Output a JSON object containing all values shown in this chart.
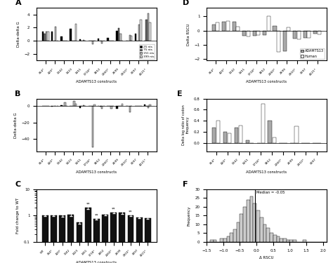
{
  "panel_A": {
    "categories": [
      "354*",
      "420*",
      "1342",
      "1423",
      "1451",
      "1718*",
      "1852",
      "2260*",
      "2699",
      "2910*",
      "3097",
      "4221*"
    ],
    "series": {
      "25nt": [
        1.4,
        1.4,
        0.65,
        1.8,
        0.2,
        0.0,
        0.35,
        0.4,
        1.55,
        0.0,
        1.1,
        0.0
      ],
      "75nt": [
        1.1,
        0.0,
        0.0,
        0.0,
        0.0,
        0.0,
        0.0,
        0.0,
        1.9,
        0.0,
        0.0,
        3.2
      ],
      "151nt": [
        1.4,
        2.2,
        0.0,
        0.0,
        0.15,
        -0.5,
        -0.4,
        0.0,
        1.05,
        0.85,
        2.5,
        4.15
      ],
      "399nt": [
        1.4,
        0.0,
        0.0,
        2.6,
        0.0,
        0.0,
        0.0,
        0.0,
        0.0,
        0.75,
        3.2,
        2.8
      ]
    },
    "ylabel": "Delta-delta G",
    "ylim": [
      -3,
      5
    ],
    "legend": [
      "25 nts",
      "75 nts",
      "151 nts",
      "399 nts"
    ],
    "colors": [
      "#000000",
      "#666666",
      "#bbbbbb",
      "#dddddd"
    ],
    "xlabel": "ADAMTS13 constructs"
  },
  "panel_B": {
    "categories": [
      "354*",
      "420*",
      "1342",
      "1423",
      "1451",
      "1718*",
      "1852",
      "2260*",
      "2699",
      "2910*",
      "3097",
      "4221*"
    ],
    "series": {
      "25nt": [
        0.0,
        -0.8,
        1.2,
        0.0,
        -2.2,
        0.0,
        0.0,
        0.0,
        -3.0,
        0.0,
        0.0,
        1.5
      ],
      "75nt": [
        0.0,
        0.0,
        0.0,
        0.0,
        0.0,
        0.0,
        -1.0,
        0.0,
        0.0,
        0.0,
        0.0,
        0.0
      ],
      "151nt": [
        0.0,
        0.0,
        4.5,
        5.7,
        1.0,
        -50.0,
        -3.0,
        -3.5,
        0.0,
        -7.5,
        0.2,
        -2.5
      ],
      "399nt": [
        0.0,
        0.0,
        0.0,
        2.8,
        0.0,
        1.5,
        0.0,
        0.0,
        2.3,
        0.0,
        0.0,
        1.5
      ]
    },
    "ylabel": "Delta-delta G",
    "ylim": [
      -55,
      9
    ],
    "colors": [
      "#000000",
      "#666666",
      "#bbbbbb",
      "#dddddd"
    ],
    "xlabel": "ADAMTS13 constructs"
  },
  "panel_C": {
    "categories": [
      "WT",
      "354*",
      "420*",
      "1342",
      "1423",
      "1451",
      "1718*",
      "1852",
      "2260*",
      "2699",
      "2910*",
      "3097",
      "4221*"
    ],
    "values": [
      1.0,
      1.0,
      1.0,
      1.1,
      0.55,
      2.0,
      0.75,
      1.1,
      1.35,
      1.3,
      1.05,
      0.85,
      0.82
    ],
    "errors": [
      0.06,
      0.06,
      0.07,
      0.12,
      0.06,
      0.25,
      0.05,
      0.1,
      0.15,
      0.14,
      0.1,
      0.07,
      0.07
    ],
    "sig": [
      false,
      false,
      false,
      false,
      false,
      true,
      true,
      false,
      true,
      false,
      true,
      false,
      false
    ],
    "ylabel": "Fold change to WT",
    "xlabel": "ADAMTS13 constructs",
    "ylim_log": [
      0.1,
      10
    ],
    "color": "#111111"
  },
  "panel_D": {
    "categories": [
      "354*",
      "420*",
      "1342",
      "1451",
      "1718*",
      "1852",
      "2260*",
      "2699",
      "2910*",
      "3097",
      "4221*"
    ],
    "adamts13": [
      0.45,
      0.65,
      0.65,
      -0.35,
      -0.35,
      -0.3,
      0.35,
      -1.45,
      -0.55,
      -0.5,
      -0.2
    ],
    "human": [
      0.6,
      0.7,
      0.3,
      -0.4,
      -0.3,
      1.0,
      -1.5,
      0.25,
      -0.6,
      -0.5,
      -0.25
    ],
    "ylabel": "Delta RSCU",
    "ylim": [
      -2.1,
      1.6
    ],
    "xlabel": "ADAMTS13 constructs",
    "colors": [
      "#aaaaaa",
      "#ffffff"
    ],
    "legend": [
      "ADAMTS13",
      "Human"
    ]
  },
  "panel_E": {
    "categories": [
      "354*",
      "420*",
      "1342",
      "1451",
      "1718*",
      "1852",
      "2260*",
      "2699",
      "2910*",
      "3097"
    ],
    "adamts13": [
      0.28,
      0.2,
      0.27,
      0.05,
      0.0,
      0.4,
      0.0,
      0.0,
      0.0,
      0.0
    ],
    "human": [
      0.4,
      0.17,
      0.32,
      0.0,
      0.7,
      0.1,
      0.0,
      0.3,
      0.0,
      0.0
    ],
    "ylabel": "Delta log ratio of codon\nfrequency",
    "ylim": [
      -0.15,
      0.8
    ],
    "xlabel": "ADAMTS13 constructs",
    "colors": [
      "#aaaaaa",
      "#ffffff"
    ]
  },
  "panel_F": {
    "bin_centers": [
      -1.4,
      -1.3,
      -1.2,
      -1.1,
      -1.0,
      -0.9,
      -0.8,
      -0.7,
      -0.6,
      -0.5,
      -0.4,
      -0.3,
      -0.2,
      -0.1,
      0.0,
      0.1,
      0.2,
      0.3,
      0.4,
      0.5,
      0.6,
      0.7,
      0.8,
      0.9,
      1.0,
      1.1,
      1.2,
      1.3,
      1.4,
      1.5,
      1.6,
      1.7,
      1.8,
      1.9,
      2.0
    ],
    "counts": [
      1,
      1,
      0,
      2,
      2,
      3,
      5,
      7,
      11,
      16,
      20,
      24,
      26,
      22,
      18,
      14,
      10,
      8,
      5,
      4,
      3,
      2,
      2,
      1,
      1,
      1,
      0,
      0,
      1,
      0,
      0,
      0,
      0,
      0,
      0
    ],
    "median": -0.05,
    "xlabel": "Δ RSCU",
    "ylabel": "Frequency",
    "xlim": [
      -1.5,
      2.1
    ],
    "ylim": [
      0,
      30
    ],
    "color": "#cccccc",
    "edgecolor": "#000000"
  }
}
